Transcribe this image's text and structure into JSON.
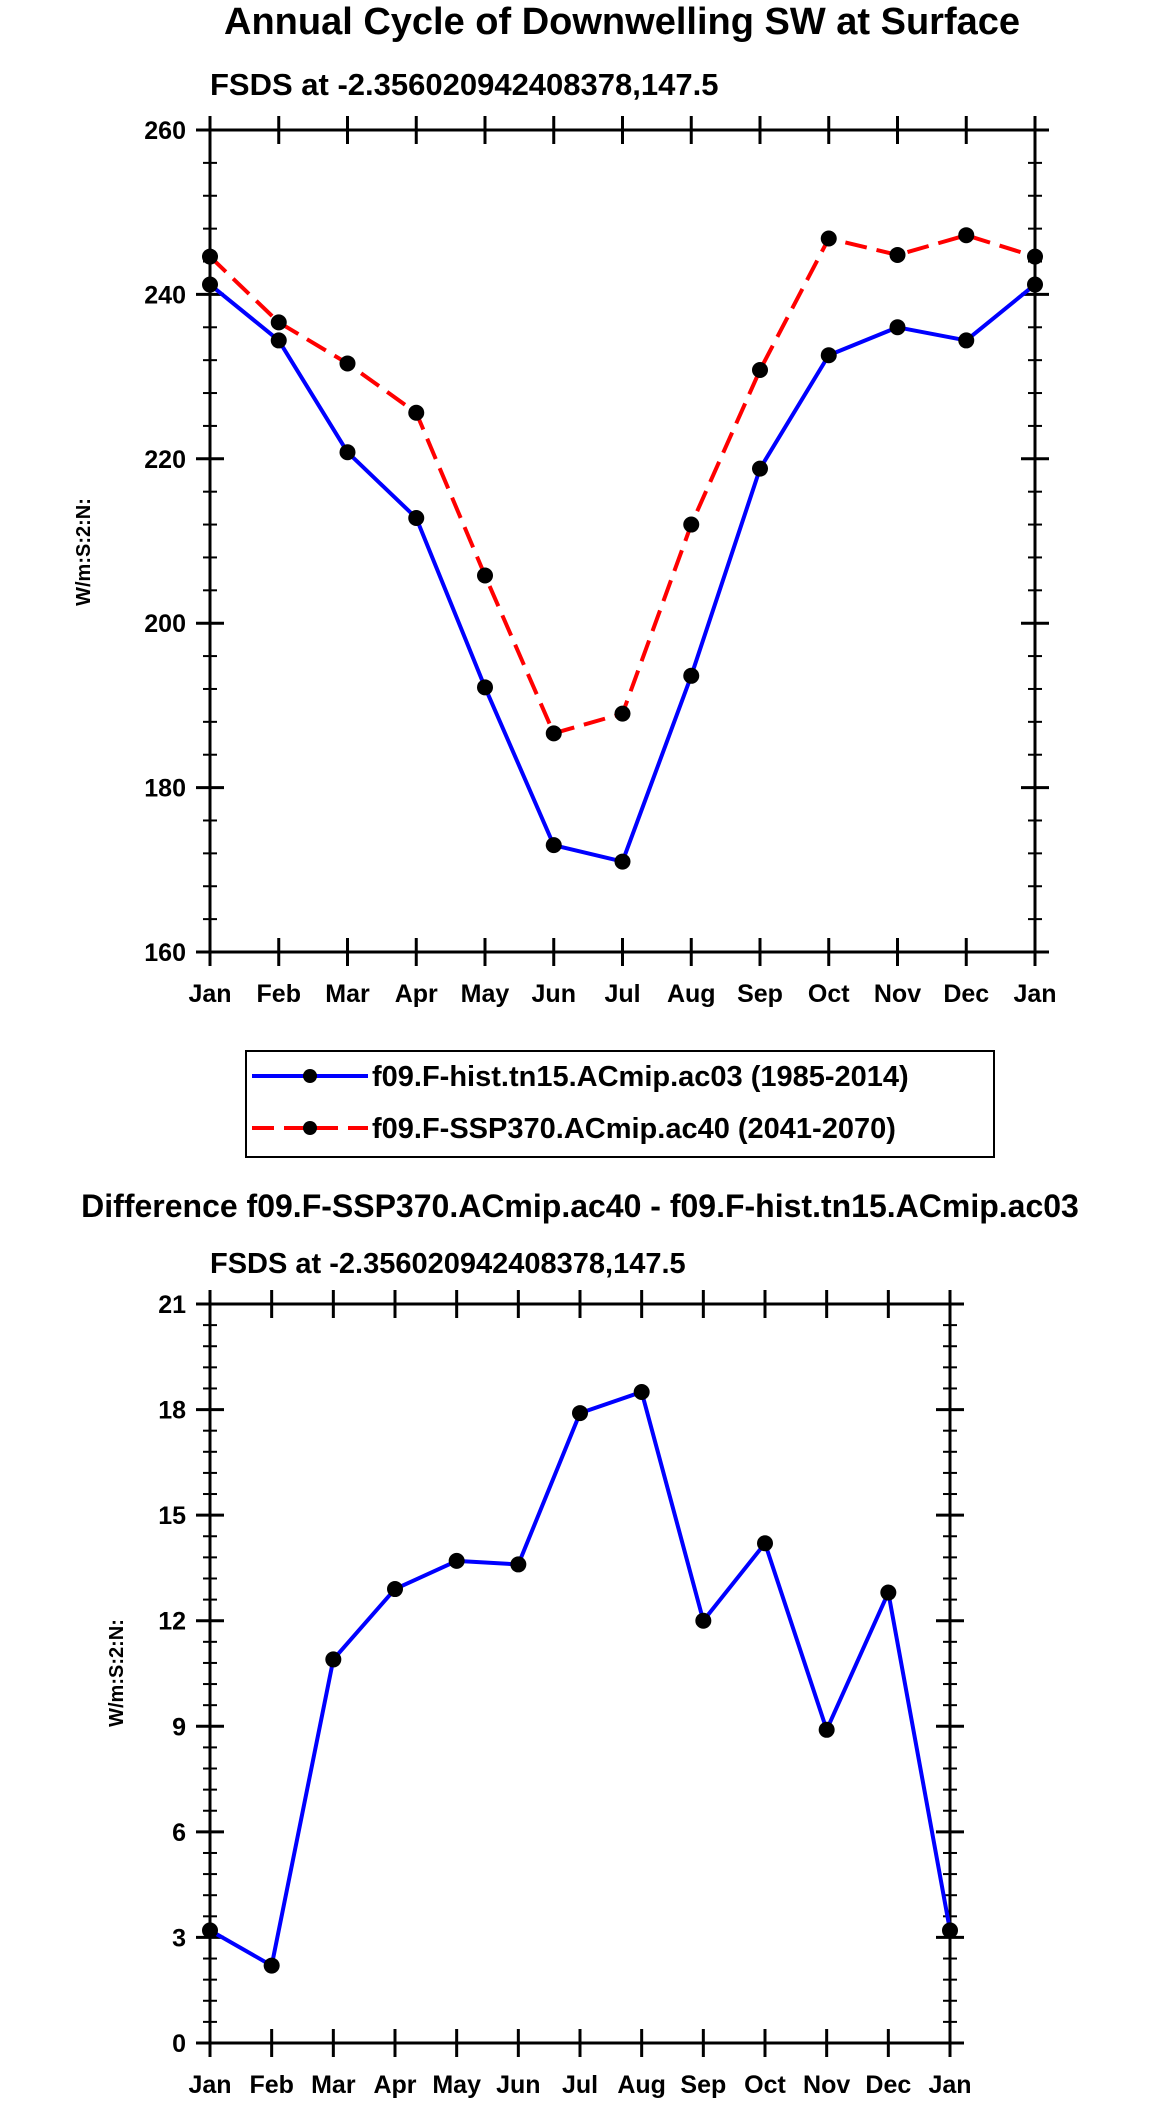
{
  "chart_data": [
    {
      "type": "line",
      "title": "Annual Cycle of Downwelling SW at Surface",
      "subtitle": "FSDS at -2.356020942408378,147.5",
      "ylabel": "W/m:S:2:N:",
      "xlabel": "",
      "ylim": [
        160,
        260
      ],
      "yticks": [
        160,
        180,
        200,
        220,
        240,
        260
      ],
      "categories": [
        "Jan",
        "Feb",
        "Mar",
        "Apr",
        "May",
        "Jun",
        "Jul",
        "Aug",
        "Sep",
        "Oct",
        "Nov",
        "Dec",
        "Jan"
      ],
      "series": [
        {
          "name": "f09.F-hist.tn15.ACmip.ac03 (1985-2014)",
          "color": "#0000ff",
          "dash": "solid",
          "values": [
            241.2,
            234.4,
            220.8,
            212.8,
            192.2,
            173.0,
            171.0,
            193.6,
            218.8,
            232.6,
            236.0,
            234.4,
            241.2
          ]
        },
        {
          "name": "f09.F-SSP370.ACmip.ac40 (2041-2070)",
          "color": "#ff0000",
          "dash": "dashed",
          "values": [
            244.6,
            236.6,
            231.6,
            225.6,
            205.8,
            186.6,
            189.0,
            212.0,
            230.8,
            246.8,
            244.8,
            247.2,
            244.6
          ]
        }
      ],
      "legend": "bottom-center"
    },
    {
      "type": "line",
      "title": "Difference f09.F-SSP370.ACmip.ac40 - f09.F-hist.tn15.ACmip.ac03",
      "subtitle": "FSDS at -2.356020942408378,147.5",
      "ylabel": "W/m:S:2:N:",
      "xlabel": "",
      "ylim": [
        0,
        21
      ],
      "yticks": [
        0,
        3,
        6,
        9,
        12,
        15,
        18,
        21
      ],
      "categories": [
        "Jan",
        "Feb",
        "Mar",
        "Apr",
        "May",
        "Jun",
        "Jul",
        "Aug",
        "Sep",
        "Oct",
        "Nov",
        "Dec",
        "Jan"
      ],
      "series": [
        {
          "name": "difference",
          "color": "#0000ff",
          "dash": "solid",
          "values": [
            3.2,
            2.2,
            10.9,
            12.9,
            13.7,
            13.6,
            17.9,
            18.5,
            12.0,
            14.2,
            8.9,
            12.8,
            3.2
          ]
        }
      ]
    }
  ]
}
